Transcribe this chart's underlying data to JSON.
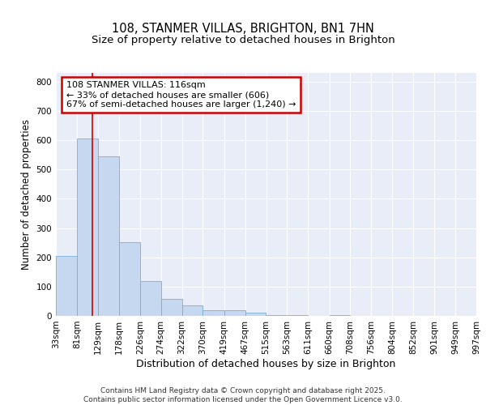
{
  "title": "108, STANMER VILLAS, BRIGHTON, BN1 7HN",
  "subtitle": "Size of property relative to detached houses in Brighton",
  "xlabel": "Distribution of detached houses by size in Brighton",
  "ylabel": "Number of detached properties",
  "bar_values": [
    205,
    607,
    545,
    253,
    120,
    57,
    35,
    20,
    18,
    10,
    2,
    2,
    1,
    2,
    0,
    0,
    0,
    0,
    0,
    0
  ],
  "bin_edges": [
    33,
    81,
    129,
    178,
    226,
    274,
    322,
    370,
    419,
    467,
    515,
    563,
    611,
    660,
    708,
    756,
    804,
    852,
    901,
    949,
    997
  ],
  "tick_labels": [
    "33sqm",
    "81sqm",
    "129sqm",
    "178sqm",
    "226sqm",
    "274sqm",
    "322sqm",
    "370sqm",
    "419sqm",
    "467sqm",
    "515sqm",
    "563sqm",
    "611sqm",
    "660sqm",
    "708sqm",
    "756sqm",
    "804sqm",
    "852sqm",
    "901sqm",
    "949sqm",
    "997sqm"
  ],
  "bar_color": "#c5d8f0",
  "bar_edge_color": "#7bafd4",
  "vline_x": 116,
  "vline_color": "#cc0000",
  "annotation_text": "108 STANMER VILLAS: 116sqm\n← 33% of detached houses are smaller (606)\n67% of semi-detached houses are larger (1,240) →",
  "annotation_box_color": "#cc0000",
  "ylim": [
    0,
    830
  ],
  "yticks": [
    0,
    100,
    200,
    300,
    400,
    500,
    600,
    700,
    800
  ],
  "plot_bg_color": "#e8edf8",
  "grid_color": "#ffffff",
  "fig_bg_color": "#ffffff",
  "footer_text": "Contains HM Land Registry data © Crown copyright and database right 2025.\nContains public sector information licensed under the Open Government Licence v3.0.",
  "title_fontsize": 10.5,
  "subtitle_fontsize": 9.5,
  "xlabel_fontsize": 9,
  "ylabel_fontsize": 8.5,
  "tick_fontsize": 7.5,
  "annotation_fontsize": 8,
  "footer_fontsize": 6.5
}
